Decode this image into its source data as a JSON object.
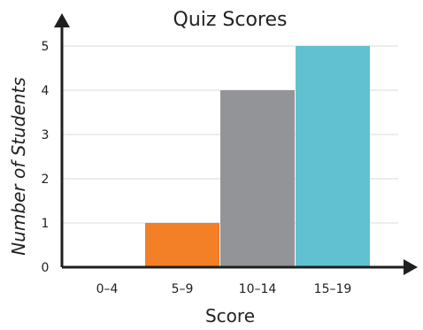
{
  "chart_data": {
    "type": "bar",
    "title": "Quiz Scores",
    "xlabel": "Score",
    "ylabel": "Number of Students",
    "categories": [
      "0–4",
      "5–9",
      "10–14",
      "15–19"
    ],
    "values": [
      0,
      1,
      4,
      5
    ],
    "ylim": [
      0,
      5
    ],
    "yticks": [
      "0",
      "1",
      "2",
      "3",
      "4",
      "5"
    ],
    "grid": true,
    "bar_colors": [
      "#f37f26",
      "#f37f26",
      "#929497",
      "#62c1d1"
    ],
    "axis_color": "#1f1f1f",
    "grid_color": "#d9d9d9"
  }
}
